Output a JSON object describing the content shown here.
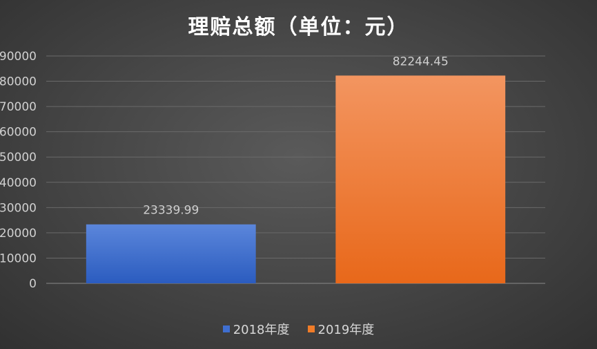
{
  "chart_data": {
    "type": "bar",
    "title": "理赔总额（单位：元）",
    "categories": [
      "2018年度",
      "2019年度"
    ],
    "values": [
      23339.99,
      82244.45
    ],
    "data_labels": [
      "23339.99",
      "82244.45"
    ],
    "ylim": [
      0,
      90000
    ],
    "yticks": [
      "0",
      "10000",
      "20000",
      "30000",
      "40000",
      "50000",
      "60000",
      "70000",
      "80000",
      "90000"
    ],
    "grid": true,
    "legend_position": "bottom",
    "colors": [
      "#3f6fd1",
      "#f07c28"
    ]
  }
}
